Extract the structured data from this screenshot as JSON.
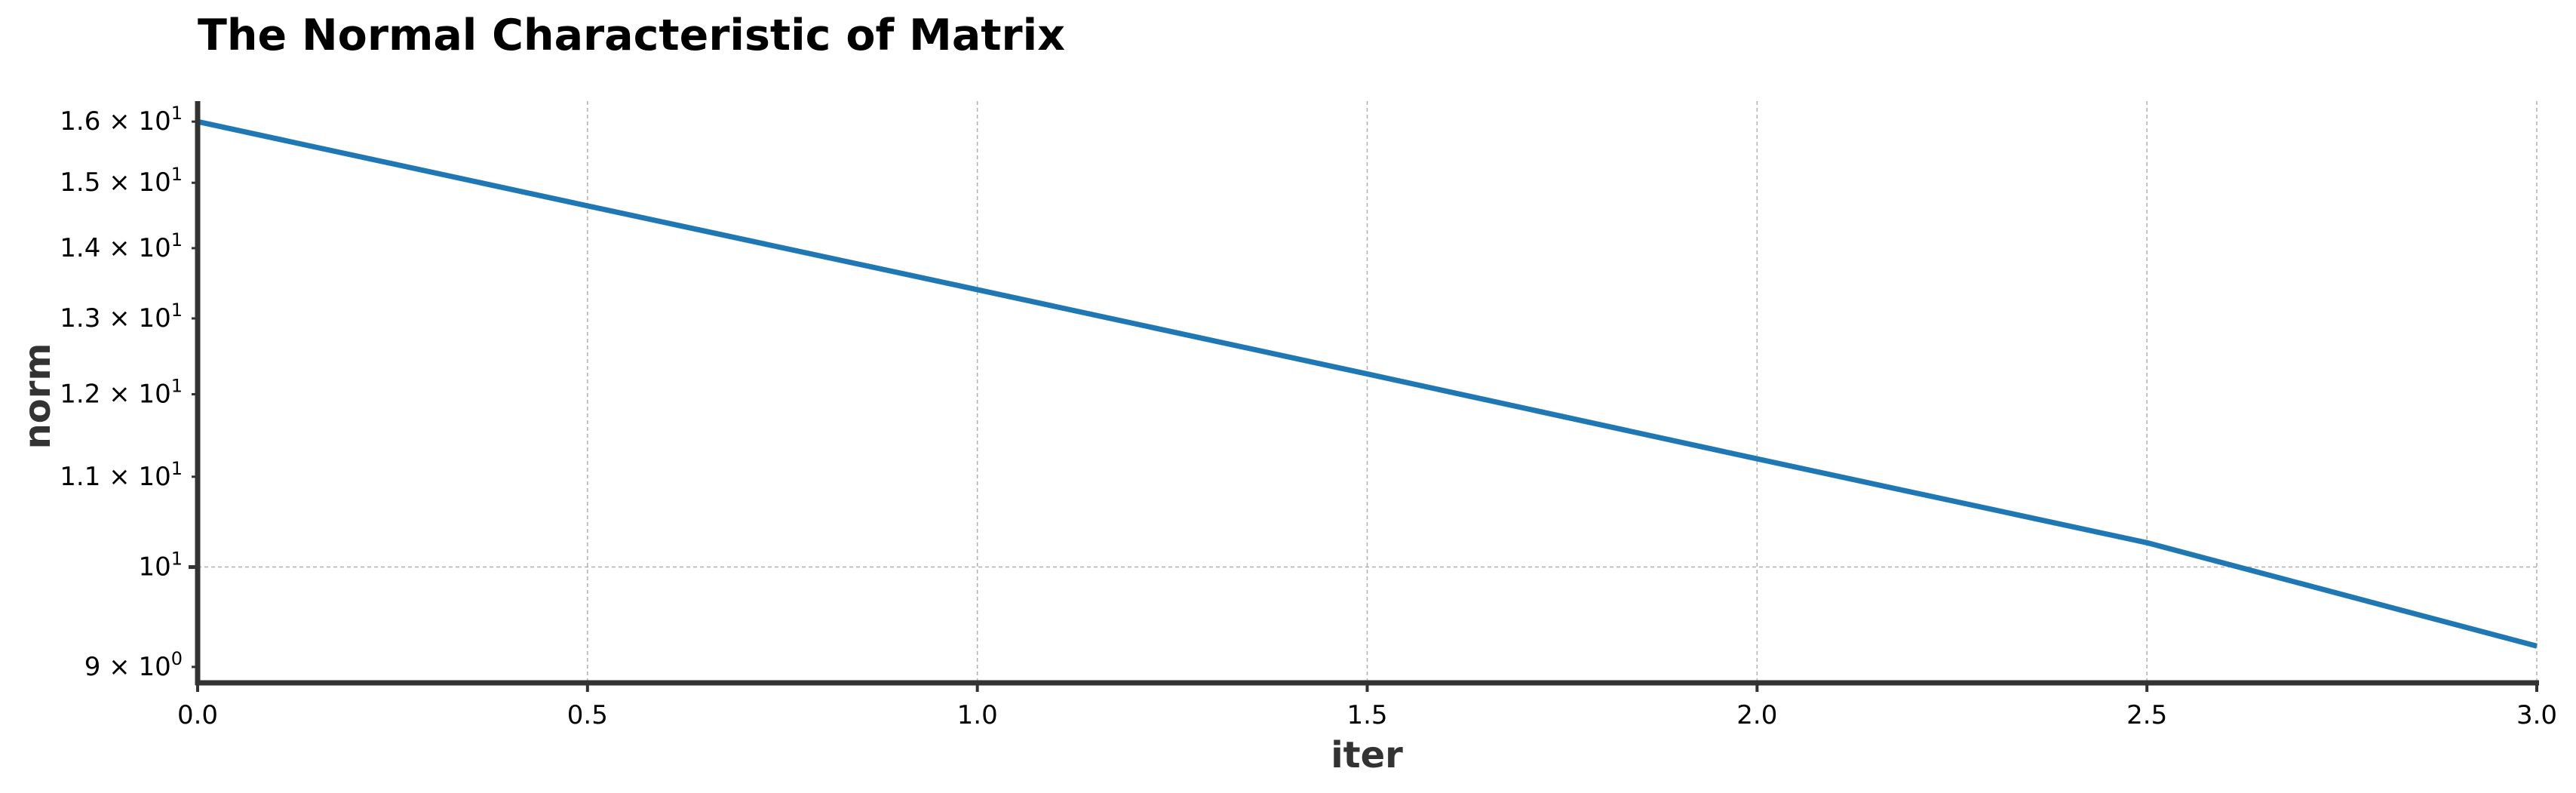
{
  "chart_data": {
    "type": "line",
    "title": "The Normal Characteristic of Matrix",
    "xlabel": "iter",
    "ylabel": "norm",
    "xscale": "linear",
    "yscale": "log",
    "xlim": [
      0,
      3
    ],
    "ylim": [
      8.85,
      16.35
    ],
    "grid": true,
    "x_ticks": [
      {
        "value": 0.0,
        "label": "0.0"
      },
      {
        "value": 0.5,
        "label": "0.5"
      },
      {
        "value": 1.0,
        "label": "1.0"
      },
      {
        "value": 1.5,
        "label": "1.5"
      },
      {
        "value": 2.0,
        "label": "2.0"
      },
      {
        "value": 2.5,
        "label": "2.5"
      },
      {
        "value": 3.0,
        "label": "3.0"
      }
    ],
    "y_ticks": [
      {
        "value": 9,
        "base": "9 × 10",
        "exp": "0",
        "major": false
      },
      {
        "value": 10,
        "base": "10",
        "exp": "1",
        "major": true
      },
      {
        "value": 11,
        "base": "1.1 × 10",
        "exp": "1",
        "major": false
      },
      {
        "value": 12,
        "base": "1.2 × 10",
        "exp": "1",
        "major": false
      },
      {
        "value": 13,
        "base": "1.3 × 10",
        "exp": "1",
        "major": false
      },
      {
        "value": 14,
        "base": "1.4 × 10",
        "exp": "1",
        "major": false
      },
      {
        "value": 15,
        "base": "1.5 × 10",
        "exp": "1",
        "major": false
      },
      {
        "value": 16,
        "base": "1.6 × 10",
        "exp": "1",
        "major": false
      }
    ],
    "series": [
      {
        "color": "#1f77b4",
        "x": [
          0,
          0.5,
          1.0,
          1.5,
          2.0,
          2.5,
          3.0
        ],
        "y": [
          16.0,
          14.64,
          13.4,
          12.26,
          11.21,
          10.26,
          9.2
        ]
      }
    ],
    "colors": {
      "line": "#1f77b4",
      "axis": "#333333",
      "grid": "#b0b0b0",
      "text": "#000000",
      "label_text": "#333333"
    }
  }
}
